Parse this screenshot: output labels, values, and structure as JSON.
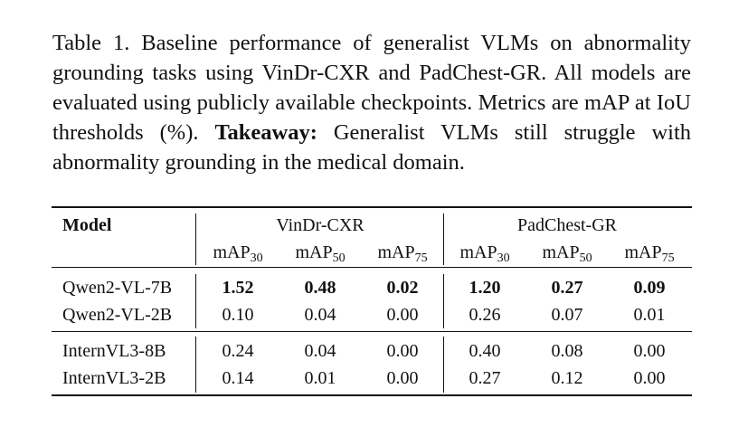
{
  "caption": {
    "label": "Table 1.",
    "text": " Baseline performance of generalist VLMs on abnormality grounding tasks using VinDr-CXR and PadChest-GR. All models are evaluated using publicly available checkpoints.  Metrics are mAP at IoU thresholds (%). ",
    "takeaway_label": "Takeaway:",
    "takeaway_text": " Generalist VLMs still struggle with abnormality grounding in the medical domain."
  },
  "table": {
    "model_header": "Model",
    "datasets": [
      "VinDr-CXR",
      "PadChest-GR"
    ],
    "metric_base": "mAP",
    "metric_subs": [
      "30",
      "50",
      "75",
      "30",
      "50",
      "75"
    ],
    "rows": [
      {
        "model": "Qwen2-VL-7B",
        "values": [
          "1.52",
          "0.48",
          "0.02",
          "1.20",
          "0.27",
          "0.09"
        ],
        "bold": true
      },
      {
        "model": "Qwen2-VL-2B",
        "values": [
          "0.10",
          "0.04",
          "0.00",
          "0.26",
          "0.07",
          "0.01"
        ],
        "bold": false
      },
      {
        "model": "InternVL3-8B",
        "values": [
          "0.24",
          "0.04",
          "0.00",
          "0.40",
          "0.08",
          "0.00"
        ],
        "bold": false
      },
      {
        "model": "InternVL3-2B",
        "values": [
          "0.14",
          "0.01",
          "0.00",
          "0.27",
          "0.12",
          "0.00"
        ],
        "bold": false
      }
    ]
  }
}
